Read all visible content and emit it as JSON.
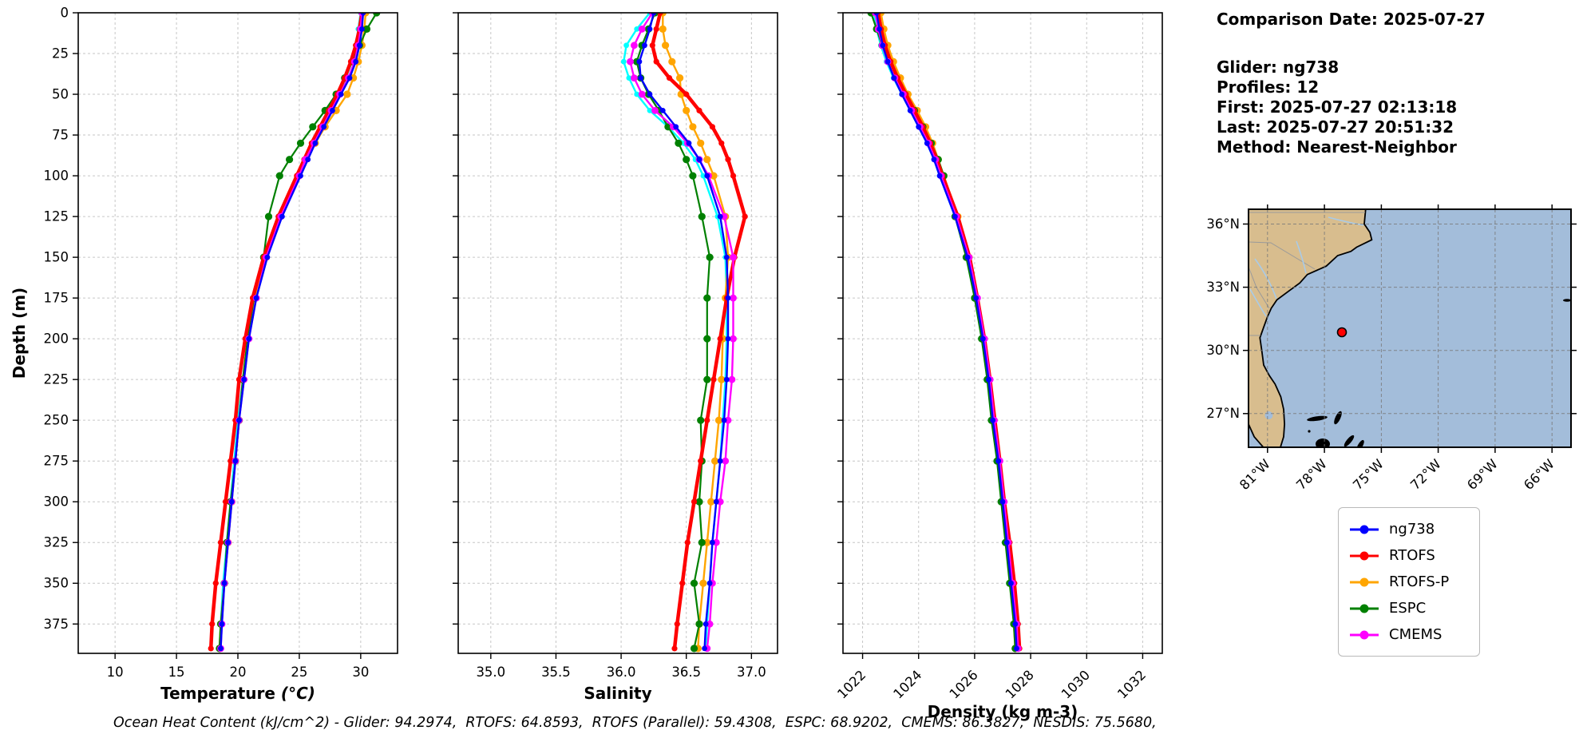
{
  "info": {
    "comparison_date": "Comparison Date: 2025-07-27",
    "glider": "Glider: ng738",
    "profiles": "Profiles: 12",
    "first": "First: 2025-07-27 02:13:18",
    "last": "Last: 2025-07-27 20:51:32",
    "method": "Method: Nearest-Neighbor"
  },
  "footer": {
    "ohc_text": "Ocean Heat Content (kJ/cm^2) - Glider: 94.2974,  RTOFS: 64.8593,  RTOFS (Parallel): 59.4308,  ESPC: 68.9202,  CMEMS: 86.3827,  NESDIS: 75.5680,"
  },
  "map": {
    "lat_labels": [
      "36°N",
      "33°N",
      "30°N",
      "27°N"
    ],
    "lon_labels": [
      "81°W",
      "78°W",
      "75°W",
      "72°W",
      "69°W",
      "66°W"
    ]
  },
  "chart_data": {
    "type": "line",
    "subtype": "vertical-ocean-profiles",
    "ylabel": "Depth (m)",
    "ylim": [
      0,
      393
    ],
    "grid": "dashed",
    "legend_position": "lower right",
    "depth_ticks": [
      0,
      25,
      50,
      75,
      100,
      125,
      150,
      175,
      200,
      225,
      250,
      275,
      300,
      325,
      350,
      375
    ],
    "depths": [
      0,
      10,
      20,
      30,
      40,
      50,
      60,
      70,
      80,
      90,
      100,
      125,
      150,
      175,
      200,
      225,
      250,
      275,
      300,
      325,
      350,
      375,
      390
    ],
    "panels": [
      {
        "id": "temperature",
        "xlabel": "Temperature",
        "xlabel_unit": "(°C)",
        "xlim": [
          7.0,
          33.0
        ],
        "xticks": [
          10,
          15,
          20,
          25,
          30
        ],
        "xtick_labels": [
          "10",
          "15",
          "20",
          "25",
          "30"
        ],
        "rotate_xticks": false
      },
      {
        "id": "salinity",
        "xlabel": "Salinity",
        "xlim": [
          34.75,
          37.2
        ],
        "xticks": [
          35.0,
          35.5,
          36.0,
          36.5,
          37.0
        ],
        "xtick_labels": [
          "35.0",
          "35.5",
          "36.0",
          "36.5",
          "37.0"
        ],
        "rotate_xticks": false
      },
      {
        "id": "density",
        "xlabel": "Density (kg m-3)",
        "xlim": [
          1021.3,
          1032.7
        ],
        "xticks": [
          1022,
          1024,
          1026,
          1028,
          1030,
          1032
        ],
        "xtick_labels": [
          "1022",
          "1024",
          "1026",
          "1028",
          "1030",
          "1032"
        ],
        "rotate_xticks": true
      }
    ],
    "draw_order": [
      "NESDIS",
      "RTOFS-P",
      "ESPC",
      "RTOFS",
      "CMEMS",
      "ng738"
    ],
    "series": [
      {
        "name": "ng738",
        "color": "#0000ff",
        "line_width": 2.4,
        "marker_r": 3.4,
        "temperature": [
          30.2,
          30.1,
          29.9,
          29.6,
          29.1,
          28.4,
          27.7,
          27.0,
          26.3,
          25.7,
          25.1,
          23.6,
          22.4,
          21.5,
          20.9,
          20.5,
          20.1,
          19.8,
          19.5,
          19.2,
          18.9,
          18.7,
          18.6
        ],
        "salinity": [
          36.25,
          36.22,
          36.18,
          36.14,
          36.15,
          36.22,
          36.32,
          36.42,
          36.52,
          36.6,
          36.66,
          36.76,
          36.81,
          36.82,
          36.82,
          36.81,
          36.79,
          36.76,
          36.73,
          36.7,
          36.68,
          36.65,
          36.64
        ],
        "density": [
          1022.5,
          1022.6,
          1022.72,
          1022.9,
          1023.12,
          1023.4,
          1023.7,
          1024.0,
          1024.3,
          1024.55,
          1024.75,
          1025.3,
          1025.75,
          1026.05,
          1026.3,
          1026.5,
          1026.65,
          1026.85,
          1027.0,
          1027.15,
          1027.3,
          1027.45,
          1027.5
        ]
      },
      {
        "name": "RTOFS",
        "color": "#ff0000",
        "line_width": 4.5,
        "marker_r": 3.6,
        "temperature": [
          30.1,
          29.9,
          29.6,
          29.2,
          28.7,
          28.1,
          27.4,
          26.7,
          26.0,
          25.4,
          24.8,
          23.3,
          22.1,
          21.2,
          20.6,
          20.1,
          19.8,
          19.4,
          19.0,
          18.6,
          18.2,
          17.9,
          17.8
        ],
        "salinity": [
          36.3,
          36.27,
          36.24,
          36.27,
          36.37,
          36.5,
          36.6,
          36.7,
          36.77,
          36.82,
          36.86,
          36.95,
          36.87,
          36.81,
          36.76,
          36.71,
          36.66,
          36.61,
          36.56,
          36.51,
          36.47,
          36.43,
          36.41
        ],
        "density": [
          1022.55,
          1022.66,
          1022.8,
          1023.0,
          1023.25,
          1023.55,
          1023.85,
          1024.15,
          1024.42,
          1024.65,
          1024.85,
          1025.4,
          1025.82,
          1026.1,
          1026.35,
          1026.55,
          1026.72,
          1026.9,
          1027.06,
          1027.25,
          1027.42,
          1027.55,
          1027.6
        ]
      },
      {
        "name": "RTOFS-P",
        "color": "#ffa500",
        "line_width": 2.4,
        "marker_r": 4.6,
        "temperature": [
          30.4,
          30.3,
          30.1,
          29.8,
          29.4,
          28.9,
          28.0,
          27.1,
          26.3,
          25.5,
          24.9,
          23.4,
          22.3,
          21.4,
          20.8,
          20.4,
          20.1,
          19.8,
          19.5,
          19.2,
          18.9,
          18.6,
          18.5
        ],
        "salinity": [
          36.32,
          36.32,
          36.34,
          36.39,
          36.45,
          36.46,
          36.5,
          36.55,
          36.61,
          36.66,
          36.71,
          36.8,
          36.82,
          36.8,
          36.78,
          36.77,
          36.75,
          36.72,
          36.69,
          36.66,
          36.63,
          36.6,
          36.59
        ],
        "density": [
          1022.65,
          1022.76,
          1022.9,
          1023.1,
          1023.35,
          1023.62,
          1023.95,
          1024.25,
          1024.5,
          1024.7,
          1024.9,
          1025.4,
          1025.8,
          1026.08,
          1026.3,
          1026.5,
          1026.65,
          1026.85,
          1027.0,
          1027.15,
          1027.3,
          1027.4,
          1027.45
        ]
      },
      {
        "name": "ESPC",
        "color": "#008000",
        "line_width": 2.2,
        "marker_r": 4.6,
        "temperature": [
          31.3,
          30.5,
          29.9,
          29.3,
          28.7,
          28.0,
          27.1,
          26.1,
          25.1,
          24.2,
          23.4,
          22.5,
          22.1,
          21.3,
          20.8,
          20.4,
          20.1,
          19.8,
          19.4,
          19.1,
          18.9,
          18.6,
          18.5
        ],
        "salinity": [
          36.26,
          36.21,
          36.16,
          36.12,
          36.15,
          36.21,
          36.29,
          36.36,
          36.44,
          36.5,
          36.55,
          36.62,
          36.68,
          36.66,
          36.66,
          36.66,
          36.61,
          36.62,
          36.6,
          36.62,
          36.56,
          36.6,
          36.56
        ],
        "density": [
          1022.3,
          1022.5,
          1022.7,
          1022.95,
          1023.2,
          1023.5,
          1023.85,
          1024.15,
          1024.45,
          1024.7,
          1024.9,
          1025.3,
          1025.7,
          1026.0,
          1026.25,
          1026.45,
          1026.6,
          1026.8,
          1026.95,
          1027.1,
          1027.25,
          1027.4,
          1027.45
        ]
      },
      {
        "name": "CMEMS",
        "color": "#ff00ff",
        "line_width": 2.4,
        "marker_r": 4.4,
        "temperature": [
          30.1,
          30.0,
          29.8,
          29.5,
          29.0,
          28.3,
          27.6,
          26.9,
          26.2,
          25.5,
          25.0,
          23.5,
          22.3,
          21.5,
          20.9,
          20.5,
          20.1,
          19.8,
          19.5,
          19.2,
          18.9,
          18.7,
          18.6
        ],
        "salinity": [
          36.24,
          36.16,
          36.1,
          36.07,
          36.1,
          36.16,
          36.26,
          36.4,
          36.51,
          36.6,
          36.67,
          36.79,
          36.86,
          36.86,
          36.86,
          36.85,
          36.82,
          36.8,
          36.76,
          36.73,
          36.7,
          36.68,
          36.66
        ],
        "density": [
          1022.45,
          1022.56,
          1022.7,
          1022.9,
          1023.15,
          1023.45,
          1023.75,
          1024.05,
          1024.35,
          1024.6,
          1024.8,
          1025.35,
          1025.8,
          1026.1,
          1026.35,
          1026.55,
          1026.7,
          1026.9,
          1027.05,
          1027.2,
          1027.35,
          1027.5,
          1027.55
        ]
      },
      {
        "name": "NESDIS",
        "color": "#00ffff",
        "line_width": 2.4,
        "marker_r": 3.4,
        "in_legend": false,
        "temperature": [
          30.0,
          29.8,
          29.6,
          29.3,
          28.8,
          28.2,
          27.5,
          26.8,
          26.1,
          25.5,
          24.9,
          23.5,
          22.3,
          21.4,
          20.8,
          20.4,
          20.0,
          19.7,
          19.4,
          19.1,
          18.8,
          18.6,
          18.5
        ],
        "salinity": [
          36.22,
          36.12,
          36.04,
          36.02,
          36.06,
          36.12,
          36.22,
          36.36,
          36.48,
          36.57,
          36.63,
          36.74,
          36.8,
          36.81,
          36.81,
          36.8,
          36.78,
          36.76,
          36.73,
          36.7,
          36.68,
          36.66,
          36.65
        ],
        "density": [
          1022.4,
          1022.5,
          1022.65,
          1022.85,
          1023.1,
          1023.4,
          1023.7,
          1024.0,
          1024.3,
          1024.55,
          1024.75,
          1025.3,
          1025.75,
          1026.05,
          1026.3,
          1026.5,
          1026.65,
          1026.85,
          1027.0,
          1027.15,
          1027.3,
          1027.45,
          1027.5
        ]
      }
    ]
  }
}
